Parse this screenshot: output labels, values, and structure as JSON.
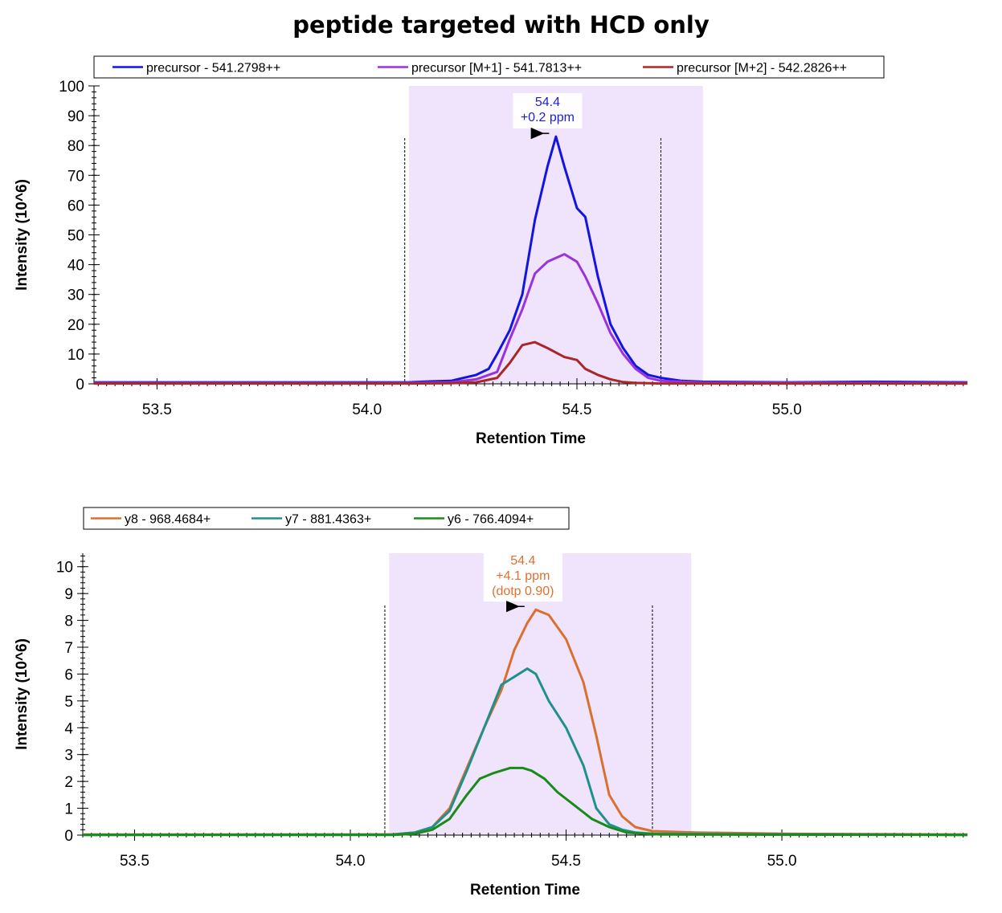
{
  "title": "peptide targeted with HCD only",
  "chart_data": [
    {
      "type": "line",
      "xlabel": "Retention Time",
      "ylabel": "Intensity (10^6)",
      "xlim": [
        53.35,
        55.43
      ],
      "ylim": [
        0,
        100
      ],
      "xticks": [
        53.5,
        54.0,
        54.5,
        55.0
      ],
      "xtick_labels": [
        "53.5",
        "54.0",
        "54.5",
        "55.0"
      ],
      "yticks": [
        0,
        10,
        20,
        30,
        40,
        50,
        60,
        70,
        80,
        90,
        100
      ],
      "legend_position": "top",
      "integration_region": [
        54.1,
        54.8
      ],
      "boundaries": [
        54.09,
        54.7
      ],
      "annotation": {
        "x": 54.43,
        "y": 83,
        "lines": [
          "54.4",
          "+0.2 ppm"
        ],
        "color": "#1c1cdc"
      },
      "series": [
        {
          "name": "precursor - 541.2798++",
          "color": "#1414e0",
          "x": [
            53.35,
            53.6,
            53.8,
            54.0,
            54.1,
            54.15,
            54.2,
            54.23,
            54.26,
            54.29,
            54.31,
            54.34,
            54.37,
            54.4,
            54.43,
            54.45,
            54.47,
            54.5,
            54.52,
            54.55,
            54.58,
            54.61,
            54.64,
            54.67,
            54.7,
            54.75,
            54.8,
            55.0,
            55.2,
            55.43
          ],
          "y": [
            0.5,
            0.5,
            0.5,
            0.5,
            0.5,
            0.8,
            1.0,
            2.0,
            3.0,
            5.0,
            10.0,
            18.0,
            30.0,
            55.0,
            73.0,
            83.0,
            73.0,
            59.0,
            56.0,
            36.0,
            20.0,
            12.0,
            6.0,
            3.0,
            2.0,
            1.0,
            0.7,
            0.5,
            0.7,
            0.5
          ]
        },
        {
          "name": "precursor [M+1] - 541.7813++",
          "color": "#9933dd",
          "x": [
            53.35,
            53.8,
            54.1,
            54.2,
            54.26,
            54.31,
            54.34,
            54.37,
            54.4,
            54.43,
            54.47,
            54.5,
            54.52,
            54.55,
            54.58,
            54.61,
            54.64,
            54.67,
            54.7,
            54.8,
            55.43
          ],
          "y": [
            0.3,
            0.3,
            0.3,
            0.5,
            1.5,
            4.0,
            15.0,
            25.0,
            37.0,
            41.0,
            43.5,
            41.0,
            36.0,
            27.0,
            17.0,
            10.0,
            5.0,
            2.0,
            1.0,
            0.4,
            0.3
          ]
        },
        {
          "name": "precursor [M+2] - 542.2826++",
          "color": "#a82828",
          "x": [
            53.35,
            54.1,
            54.2,
            54.26,
            54.31,
            54.34,
            54.37,
            54.4,
            54.43,
            54.47,
            54.5,
            54.52,
            54.55,
            54.58,
            54.61,
            54.64,
            54.67,
            54.7,
            55.43
          ],
          "y": [
            0.1,
            0.1,
            0.2,
            0.5,
            2.0,
            7.0,
            13.0,
            14.0,
            12.0,
            9.0,
            8.0,
            5.0,
            3.0,
            1.5,
            0.6,
            0.3,
            0.2,
            0.1,
            0.1
          ]
        }
      ]
    },
    {
      "type": "line",
      "xlabel": "Retention Time",
      "ylabel": "Intensity (10^6)",
      "xlim": [
        53.38,
        55.43
      ],
      "ylim": [
        0,
        10.5
      ],
      "xticks": [
        53.5,
        54.0,
        54.5,
        55.0
      ],
      "xtick_labels": [
        "53.5",
        "54.0",
        "54.5",
        "55.0"
      ],
      "yticks": [
        0,
        1,
        2,
        3,
        4,
        5,
        6,
        7,
        8,
        9,
        10
      ],
      "legend_position": "top",
      "integration_region": [
        54.09,
        54.79
      ],
      "boundaries": [
        54.08,
        54.7
      ],
      "annotation": {
        "x": 54.4,
        "y": 8.4,
        "lines": [
          "54.4",
          "+4.1 ppm",
          "(dotp 0.90)"
        ],
        "color": "#e07030"
      },
      "series": [
        {
          "name": "y8 - 968.4684+",
          "color": "#d97030",
          "x": [
            53.38,
            54.0,
            54.1,
            54.15,
            54.19,
            54.23,
            54.27,
            54.31,
            54.35,
            54.38,
            54.41,
            54.43,
            54.46,
            54.5,
            54.54,
            54.57,
            54.6,
            54.63,
            54.66,
            54.7,
            54.8,
            55.0,
            55.43
          ],
          "y": [
            0.02,
            0.02,
            0.03,
            0.1,
            0.3,
            1.0,
            2.5,
            4.0,
            5.4,
            6.9,
            7.9,
            8.4,
            8.2,
            7.3,
            5.7,
            3.7,
            1.5,
            0.7,
            0.3,
            0.15,
            0.1,
            0.05,
            0.02
          ]
        },
        {
          "name": "y7 - 881.4363+",
          "color": "#20908a",
          "x": [
            53.38,
            54.1,
            54.15,
            54.19,
            54.23,
            54.27,
            54.31,
            54.35,
            54.38,
            54.41,
            54.43,
            54.46,
            54.5,
            54.54,
            54.57,
            54.6,
            54.63,
            54.66,
            54.7,
            55.43
          ],
          "y": [
            0.01,
            0.02,
            0.1,
            0.3,
            0.9,
            2.4,
            4.0,
            5.6,
            5.9,
            6.2,
            6.0,
            5.0,
            4.0,
            2.6,
            1.0,
            0.4,
            0.2,
            0.1,
            0.05,
            0.01
          ]
        },
        {
          "name": "y6 - 766.4094+",
          "color": "#1a8a1a",
          "x": [
            53.38,
            54.1,
            54.15,
            54.19,
            54.23,
            54.27,
            54.3,
            54.33,
            54.37,
            54.4,
            54.42,
            54.45,
            54.48,
            54.52,
            54.56,
            54.6,
            54.64,
            54.68,
            54.72,
            55.43
          ],
          "y": [
            0.01,
            0.01,
            0.05,
            0.2,
            0.6,
            1.5,
            2.1,
            2.3,
            2.5,
            2.5,
            2.4,
            2.1,
            1.6,
            1.1,
            0.6,
            0.3,
            0.1,
            0.05,
            0.02,
            0.01
          ]
        }
      ]
    }
  ]
}
